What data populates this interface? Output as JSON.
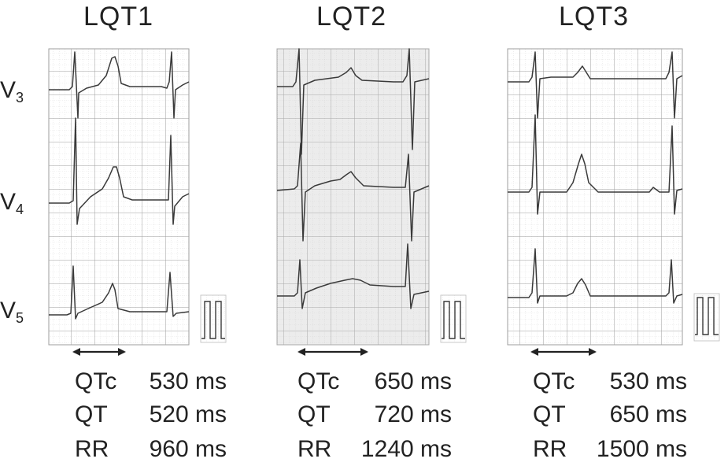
{
  "panels": [
    {
      "title": "LQT1",
      "measurements": [
        {
          "name": "QTc",
          "value": "530 ms"
        },
        {
          "name": "QT",
          "value": "520 ms"
        },
        {
          "name": "RR",
          "value": "960 ms"
        }
      ]
    },
    {
      "title": "LQT2",
      "measurements": [
        {
          "name": "QTc",
          "value": "650 ms"
        },
        {
          "name": "QT",
          "value": "720 ms"
        },
        {
          "name": "RR",
          "value": "1240 ms"
        }
      ]
    },
    {
      "title": "LQT3",
      "measurements": [
        {
          "name": "QTc",
          "value": "530 ms"
        },
        {
          "name": "QT",
          "value": "650 ms"
        },
        {
          "name": "RR",
          "value": "1500 ms"
        }
      ]
    }
  ],
  "leads": [
    {
      "letter": "V",
      "sub": "3"
    },
    {
      "letter": "V",
      "sub": "4"
    },
    {
      "letter": "V",
      "sub": "5"
    }
  ],
  "colors": {
    "grid_major": "#9a9a9a",
    "grid_minor": "#c4c4c4",
    "trace": "#3a3a3a",
    "grid_bg_lqt2": "#ececec",
    "text": "#222222"
  }
}
